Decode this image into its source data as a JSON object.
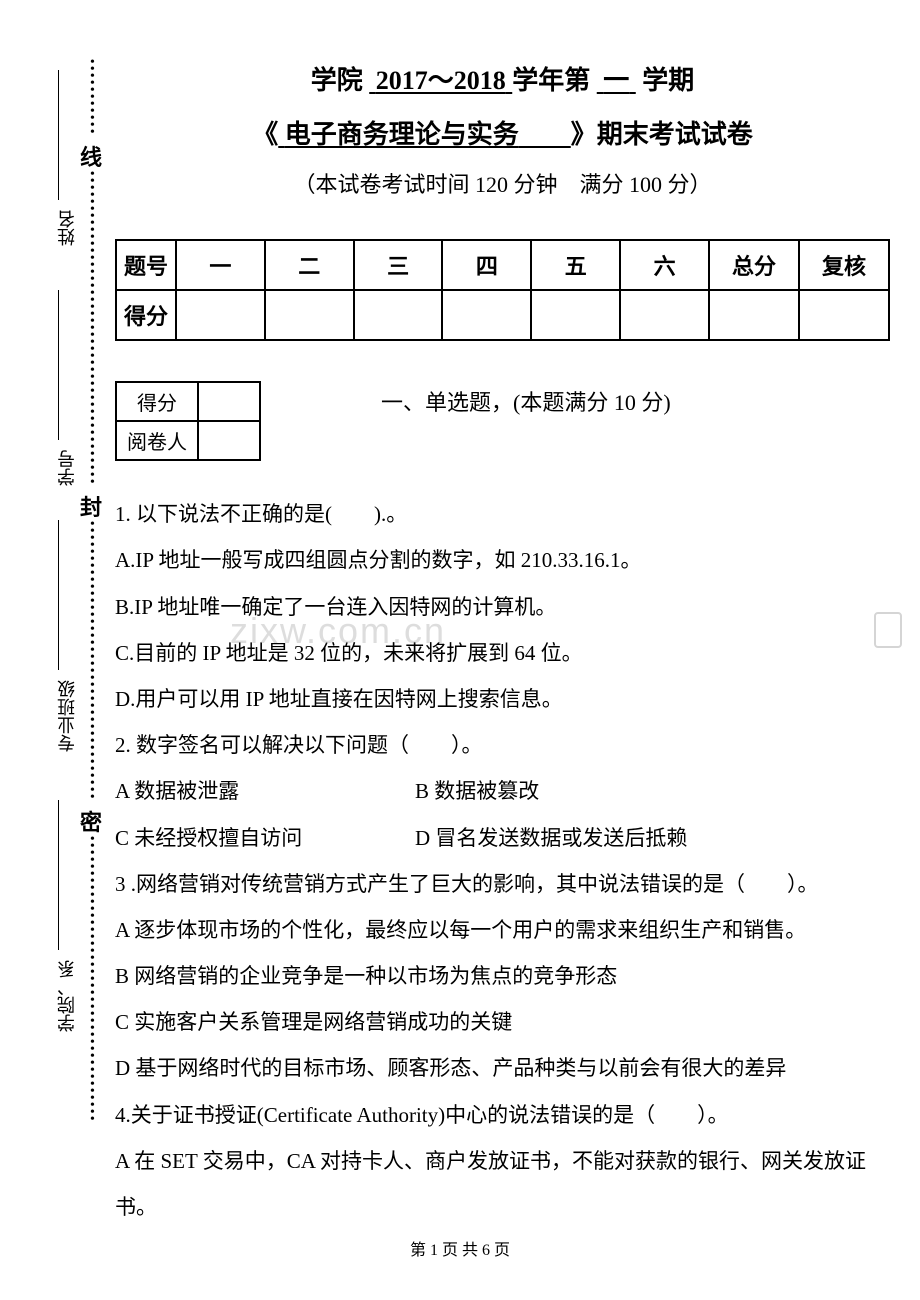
{
  "sidebar": {
    "labels": {
      "name": "姓名",
      "student_id": "学号",
      "class": "专业班级",
      "department": "学院、系"
    },
    "seal_chars": {
      "line": "线",
      "seal": "封",
      "secret": "密"
    }
  },
  "header": {
    "institute": "学院",
    "year_range": "2017～2018",
    "year_suffix": "学年第",
    "semester": "一",
    "semester_suffix": "学期",
    "course_prefix": "《",
    "course_name": "电子商务理论与实务",
    "course_spacer": "　　",
    "course_suffix": "》期末考试试卷",
    "exam_info": "（本试卷考试时间 120 分钟　满分 100 分）"
  },
  "score_table": {
    "row_header_1": "题号",
    "row_header_2": "得分",
    "columns": [
      "一",
      "二",
      "三",
      "四",
      "五",
      "六",
      "总分",
      "复核"
    ]
  },
  "small_table": {
    "score": "得分",
    "grader": "阅卷人"
  },
  "section_1": {
    "title": "一、单选题，(本题满分 10 分)"
  },
  "questions": {
    "q1": {
      "stem": "1. 以下说法不正确的是(　　).。",
      "a": "A.IP 地址一般写成四组圆点分割的数字，如 210.33.16.1。",
      "b": "B.IP 地址唯一确定了一台连入因特网的计算机。",
      "c": "C.目前的 IP 地址是 32 位的，未来将扩展到 64 位。",
      "d": "D.用户可以用 IP 地址直接在因特网上搜索信息。"
    },
    "q2": {
      "stem": "2. 数字签名可以解决以下问题（　　）。",
      "a": "A  数据被泄露",
      "b": "B 数据被篡改",
      "c": "C  未经授权擅自访问",
      "d": "D 冒名发送数据或发送后抵赖"
    },
    "q3": {
      "stem": "3 .网络营销对传统营销方式产生了巨大的影响，其中说法错误的是（　　）。",
      "a": "A 逐步体现市场的个性化，最终应以每一个用户的需求来组织生产和销售。",
      "b": "B 网络营销的企业竞争是一种以市场为焦点的竞争形态",
      "c": "C 实施客户关系管理是网络营销成功的关键",
      "d": "D  基于网络时代的目标市场、顾客形态、产品种类与以前会有很大的差异"
    },
    "q4": {
      "stem": "4.关于证书授证(Certificate Authority)中心的说法错误的是（　　）。",
      "a": "A  在 SET 交易中，CA 对持卡人、商户发放证书，不能对获款的银行、网关发放证书。"
    }
  },
  "watermark": "zixw.com.cn",
  "footer": {
    "text": "第 1 页 共 6 页"
  }
}
